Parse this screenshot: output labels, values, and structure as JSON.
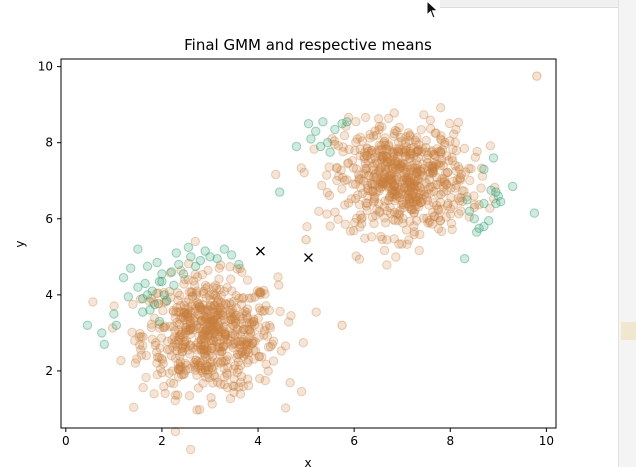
{
  "window": {
    "cursor_icon": "mouse-pointer-icon"
  },
  "chart_data": {
    "type": "scatter",
    "title": "Final GMM and respective means",
    "xlabel": "x",
    "ylabel": "y",
    "xlim": [
      -0.1,
      10.2
    ],
    "ylim": [
      0.5,
      10.2
    ],
    "xticks": [
      0,
      2,
      4,
      6,
      8,
      10
    ],
    "yticks": [
      2,
      4,
      6,
      8,
      10
    ],
    "grid": false,
    "clusters": [
      {
        "component": "orange",
        "cx": 3.0,
        "cy": 2.95,
        "sx": 0.7,
        "sy": 0.75,
        "n": 620
      },
      {
        "component": "orange",
        "cx": 7.0,
        "cy": 7.05,
        "sx": 0.7,
        "sy": 0.72,
        "n": 620
      }
    ],
    "series": [
      {
        "component": "orange",
        "color": "#c97f3b",
        "points": [
          [
            9.8,
            9.75
          ],
          [
            5.75,
            3.2
          ],
          [
            5.0,
            5.45
          ],
          [
            7.3,
            6.5
          ],
          [
            2.6,
            3.1
          ]
        ]
      },
      {
        "component": "green",
        "color": "#2e9e6e",
        "points": [
          [
            0.45,
            3.2
          ],
          [
            0.75,
            3.0
          ],
          [
            0.8,
            2.7
          ],
          [
            1.0,
            3.5
          ],
          [
            1.05,
            3.2
          ],
          [
            1.2,
            4.45
          ],
          [
            1.3,
            3.95
          ],
          [
            1.35,
            4.7
          ],
          [
            1.5,
            5.2
          ],
          [
            1.5,
            4.2
          ],
          [
            1.6,
            3.55
          ],
          [
            1.65,
            4.3
          ],
          [
            1.7,
            4.75
          ],
          [
            1.75,
            3.6
          ],
          [
            1.8,
            4.1
          ],
          [
            1.85,
            3.75
          ],
          [
            1.9,
            4.85
          ],
          [
            1.95,
            4.35
          ],
          [
            2.0,
            4.55
          ],
          [
            2.05,
            4.0
          ],
          [
            2.1,
            3.85
          ],
          [
            2.2,
            4.6
          ],
          [
            2.25,
            4.25
          ],
          [
            2.3,
            5.1
          ],
          [
            2.35,
            4.8
          ],
          [
            2.45,
            4.55
          ],
          [
            2.55,
            5.25
          ],
          [
            2.6,
            5.0
          ],
          [
            2.7,
            4.75
          ],
          [
            2.8,
            4.9
          ],
          [
            2.9,
            5.15
          ],
          [
            3.0,
            5.0
          ],
          [
            3.15,
            4.95
          ],
          [
            3.3,
            5.2
          ],
          [
            3.45,
            5.05
          ],
          [
            3.6,
            4.8
          ],
          [
            1.95,
            3.3
          ],
          [
            1.7,
            4.0
          ],
          [
            2.0,
            4.35
          ],
          [
            1.6,
            3.9
          ],
          [
            4.45,
            6.7
          ],
          [
            4.8,
            7.9
          ],
          [
            5.05,
            8.5
          ],
          [
            5.2,
            8.3
          ],
          [
            5.35,
            8.55
          ],
          [
            5.45,
            8.0
          ],
          [
            5.5,
            7.75
          ],
          [
            5.6,
            8.35
          ],
          [
            5.75,
            8.5
          ],
          [
            5.85,
            8.55
          ],
          [
            5.1,
            8.1
          ],
          [
            5.3,
            7.9
          ],
          [
            8.4,
            6.2
          ],
          [
            8.5,
            6.0
          ],
          [
            8.6,
            5.75
          ],
          [
            8.7,
            6.4
          ],
          [
            8.8,
            5.95
          ],
          [
            8.85,
            6.75
          ],
          [
            9.0,
            6.6
          ],
          [
            9.3,
            6.85
          ],
          [
            9.75,
            6.15
          ],
          [
            8.7,
            5.8
          ],
          [
            8.3,
            4.95
          ],
          [
            8.55,
            5.65
          ],
          [
            8.95,
            6.7
          ],
          [
            9.05,
            6.45
          ],
          [
            8.9,
            7.6
          ],
          [
            8.7,
            7.3
          ],
          [
            8.35,
            6.5
          ],
          [
            8.95,
            6.4
          ]
        ]
      }
    ],
    "means": [
      {
        "x": 4.05,
        "y": 5.15
      },
      {
        "x": 5.05,
        "y": 4.98
      }
    ]
  }
}
